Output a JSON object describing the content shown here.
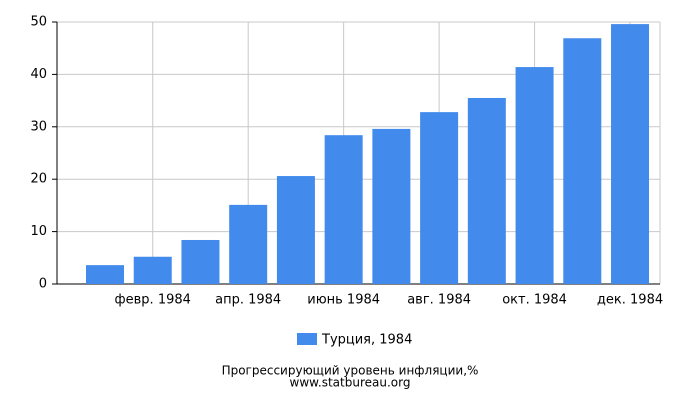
{
  "chart_data": {
    "type": "bar",
    "title": "Прогрессирующий уровень инфляции,%",
    "subtitle": "www.statbureau.org",
    "categories": [
      null,
      "февр. 1984",
      null,
      "апр. 1984",
      null,
      "июнь 1984",
      null,
      "авг. 1984",
      null,
      "окт. 1984",
      null,
      "дек. 1984"
    ],
    "series": [
      {
        "name": "Турция, 1984",
        "color": "#428bec",
        "values": [
          3.6,
          5.2,
          8.4,
          15.1,
          20.6,
          28.4,
          29.6,
          32.8,
          35.5,
          41.4,
          46.9,
          49.6
        ]
      }
    ],
    "ylim": [
      0,
      50
    ],
    "yticks": [
      0,
      10,
      20,
      30,
      40,
      50
    ],
    "grid": true
  }
}
